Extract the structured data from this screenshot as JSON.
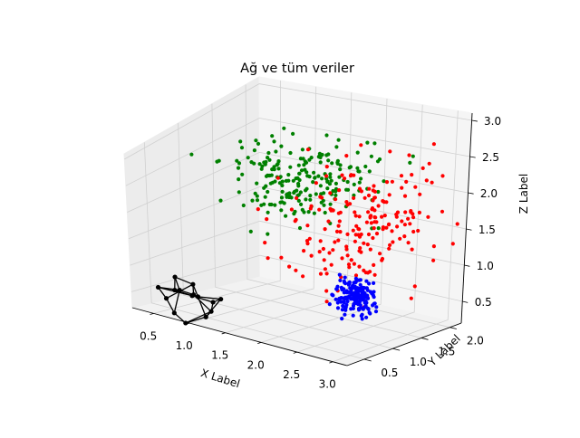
{
  "chart_data": {
    "type": "scatter",
    "title": "Ağ ve tüm veriler",
    "xlabel": "X Label",
    "ylabel": "Y Label",
    "zlabel": "Z Label",
    "xlim": [
      0.2,
      3.2
    ],
    "ylim": [
      0.2,
      2.2
    ],
    "zlim": [
      0.2,
      3.1
    ],
    "x_ticks": [
      "0.5",
      "1.0",
      "1.5",
      "2.0",
      "2.5",
      "3.0"
    ],
    "y_ticks": [
      "0.5",
      "1.0",
      "1.5",
      "2.0"
    ],
    "z_ticks": [
      "0.5",
      "1.0",
      "1.5",
      "2.0",
      "2.5",
      "3.0"
    ],
    "grid": true,
    "series": [
      {
        "color": "#008000",
        "distribution": {
          "center": [
            1.35,
            1.65,
            2.1
          ],
          "spread": [
            0.45,
            0.28,
            0.28
          ],
          "count": 220,
          "seed": 11
        }
      },
      {
        "color": "#ff0000",
        "distribution": {
          "center": [
            2.25,
            1.45,
            1.75
          ],
          "spread": [
            0.42,
            0.42,
            0.45
          ],
          "count": 200,
          "seed": 23
        }
      },
      {
        "color": "#0000ff",
        "distribution": {
          "center": [
            2.2,
            1.55,
            0.55
          ],
          "spread": [
            0.12,
            0.1,
            0.12
          ],
          "count": 170,
          "seed": 37
        }
      }
    ],
    "network": {
      "color": "#000000",
      "nodes": [
        [
          0.35,
          0.45,
          0.55
        ],
        [
          0.55,
          0.35,
          0.45
        ],
        [
          0.75,
          0.55,
          0.7
        ],
        [
          0.95,
          0.4,
          0.6
        ],
        [
          1.05,
          0.65,
          0.5
        ],
        [
          0.85,
          0.75,
          0.35
        ],
        [
          0.6,
          0.7,
          0.4
        ],
        [
          0.7,
          0.3,
          0.25
        ],
        [
          0.9,
          0.25,
          0.15
        ],
        [
          1.1,
          0.35,
          0.3
        ],
        [
          0.5,
          0.55,
          0.75
        ],
        [
          0.8,
          0.5,
          0.55
        ],
        [
          1.0,
          0.55,
          0.3
        ],
        [
          0.65,
          0.45,
          0.6
        ],
        [
          0.4,
          0.65,
          0.45
        ]
      ],
      "edges": [
        [
          0,
          1
        ],
        [
          1,
          2
        ],
        [
          2,
          3
        ],
        [
          3,
          4
        ],
        [
          4,
          5
        ],
        [
          5,
          6
        ],
        [
          6,
          0
        ],
        [
          1,
          7
        ],
        [
          7,
          8
        ],
        [
          8,
          9
        ],
        [
          9,
          4
        ],
        [
          10,
          2
        ],
        [
          10,
          13
        ],
        [
          13,
          11
        ],
        [
          11,
          3
        ],
        [
          11,
          12
        ],
        [
          12,
          8
        ],
        [
          14,
          6
        ],
        [
          14,
          10
        ],
        [
          13,
          7
        ],
        [
          2,
          11
        ],
        [
          12,
          9
        ],
        [
          0,
          13
        ],
        [
          5,
          12
        ],
        [
          3,
          9
        ]
      ]
    }
  }
}
